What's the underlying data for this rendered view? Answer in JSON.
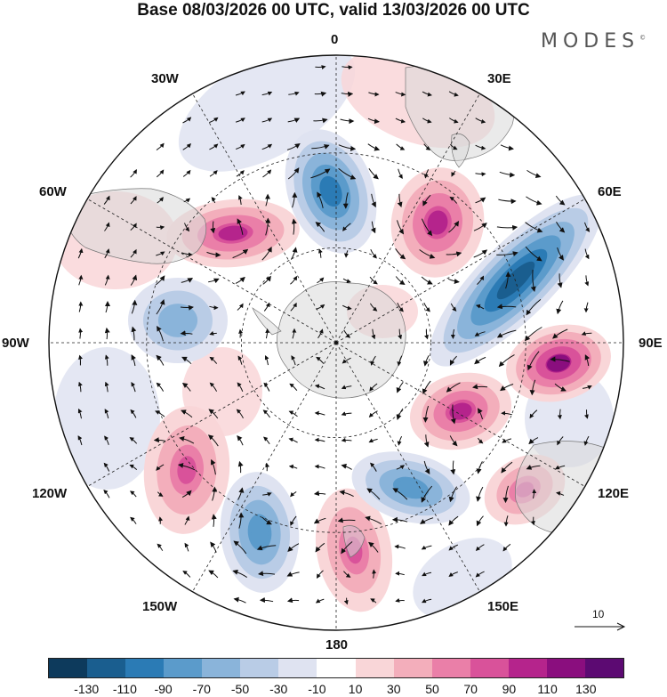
{
  "title": "Base 08/03/2026 00 UTC, valid 13/03/2026 00 UTC",
  "brand": "MODES",
  "brand_mark": "©",
  "longitude_labels": {
    "lon_0": "0",
    "lon_30e": "30E",
    "lon_60e": "60E",
    "lon_90e": "90E",
    "lon_120e": "120E",
    "lon_150e": "150E",
    "lon_180": "180",
    "lon_150w": "150W",
    "lon_120w": "120W",
    "lon_90w": "90W",
    "lon_60w": "60W",
    "lon_30w": "30W"
  },
  "reference_vector": {
    "label": "10"
  },
  "colorbar": {
    "ticks": [
      "-130",
      "-110",
      "-90",
      "-70",
      "-50",
      "-30",
      "-10",
      "10",
      "30",
      "50",
      "70",
      "90",
      "110",
      "130"
    ],
    "colors": [
      "#0d3a5c",
      "#1a5e8f",
      "#2b7bb5",
      "#5b9bcb",
      "#8ab4da",
      "#b9cce6",
      "#dfe3f1",
      "#ffffff",
      "#f9d6d8",
      "#f3aebb",
      "#ea7fa8",
      "#d9529a",
      "#b5248c",
      "#8a0e7e",
      "#5c0a72"
    ]
  },
  "anomaly_centers": [
    {
      "sign": "negative",
      "value": -110
    },
    {
      "sign": "positive",
      "value": 90
    },
    {
      "sign": "positive",
      "value": 90
    },
    {
      "sign": "negative",
      "value": -130
    },
    {
      "sign": "positive",
      "value": 110
    },
    {
      "sign": "positive",
      "value": 90
    },
    {
      "sign": "negative",
      "value": -70
    },
    {
      "sign": "positive",
      "value": 70
    },
    {
      "sign": "negative",
      "value": -90
    },
    {
      "sign": "positive",
      "value": 70
    },
    {
      "sign": "negative",
      "value": -90
    },
    {
      "sign": "positive",
      "value": 70
    }
  ]
}
